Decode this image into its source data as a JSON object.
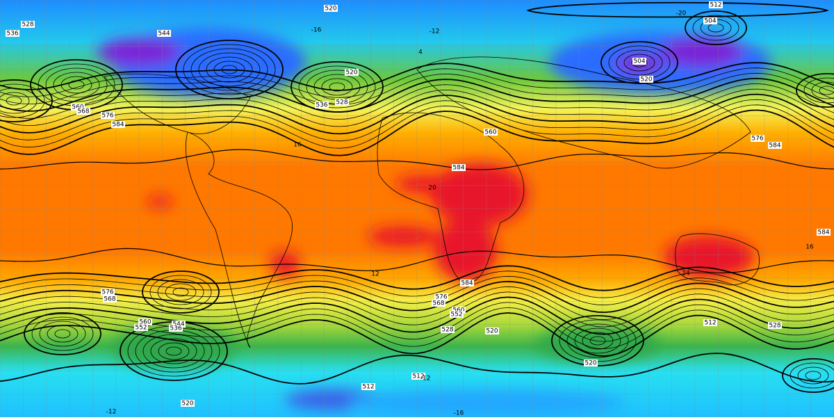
{
  "contour_labels": [
    "520",
    "512",
    "504",
    "528",
    "536",
    "544",
    "520",
    "528",
    "536",
    "560",
    "568",
    "576",
    "584",
    "584",
    "584",
    "560",
    "576",
    "584",
    "576",
    "568",
    "560",
    "552",
    "544",
    "536",
    "528",
    "520",
    "512",
    "512",
    "520",
    "512",
    "584",
    "576",
    "568",
    "560",
    "552",
    "528",
    "520",
    "504",
    "520"
  ],
  "temperature_labels": [
    "-12",
    "-16",
    "4",
    "-20",
    "16",
    "20",
    "24",
    "12",
    "-12",
    "-16",
    "-12",
    "16"
  ]
}
